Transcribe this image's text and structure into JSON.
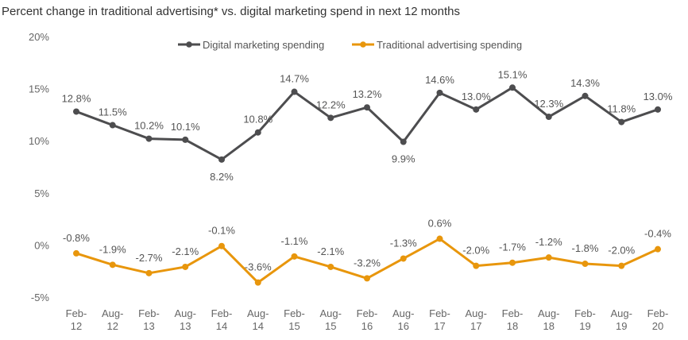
{
  "chart_data": {
    "type": "line",
    "title": "Percent change in traditional advertising* vs. digital marketing spend in next 12 months",
    "categories": [
      [
        "Feb-",
        "12"
      ],
      [
        "Aug-",
        "12"
      ],
      [
        "Feb-",
        "13"
      ],
      [
        "Aug-",
        "13"
      ],
      [
        "Feb-",
        "14"
      ],
      [
        "Aug-",
        "14"
      ],
      [
        "Feb-",
        "15"
      ],
      [
        "Aug-",
        "15"
      ],
      [
        "Feb-",
        "16"
      ],
      [
        "Aug-",
        "16"
      ],
      [
        "Feb-",
        "17"
      ],
      [
        "Aug-",
        "17"
      ],
      [
        "Feb-",
        "18"
      ],
      [
        "Aug-",
        "18"
      ],
      [
        "Feb-",
        "19"
      ],
      [
        "Aug-",
        "19"
      ],
      [
        "Feb-",
        "20"
      ]
    ],
    "yticks": [
      "20%",
      "15%",
      "10%",
      "5%",
      "0%",
      "-5%"
    ],
    "ylim": [
      -5,
      20
    ],
    "legend_position": "top",
    "series": [
      {
        "name": "Digital marketing spending",
        "color": "#4d4d4f",
        "values": [
          12.8,
          11.5,
          10.2,
          10.1,
          8.2,
          10.8,
          14.7,
          12.2,
          13.2,
          9.9,
          14.6,
          13.0,
          15.1,
          12.3,
          14.3,
          11.8,
          13.0
        ],
        "labels": [
          "12.8%",
          "11.5%",
          "10.2%",
          "10.1%",
          "8.2%",
          "10.8%",
          "14.7%",
          "12.2%",
          "13.2%",
          "9.9%",
          "14.6%",
          "13.0%",
          "15.1%",
          "12.3%",
          "14.3%",
          "11.8%",
          "13.0%"
        ]
      },
      {
        "name": "Traditional advertising spending",
        "color": "#e8960c",
        "values": [
          -0.8,
          -1.9,
          -2.7,
          -2.1,
          -0.1,
          -3.6,
          -1.1,
          -2.1,
          -3.2,
          -1.3,
          0.6,
          -2.0,
          -1.7,
          -1.2,
          -1.8,
          -2.0,
          -0.4
        ],
        "labels": [
          "-0.8%",
          "-1.9%",
          "-2.7%",
          "-2.1%",
          "-0.1%",
          "-3.6%",
          "-1.1%",
          "-2.1%",
          "-3.2%",
          "-1.3%",
          "0.6%",
          "-2.0%",
          "-1.7%",
          "-1.2%",
          "-1.8%",
          "-2.0%",
          "-0.4%"
        ]
      }
    ]
  }
}
